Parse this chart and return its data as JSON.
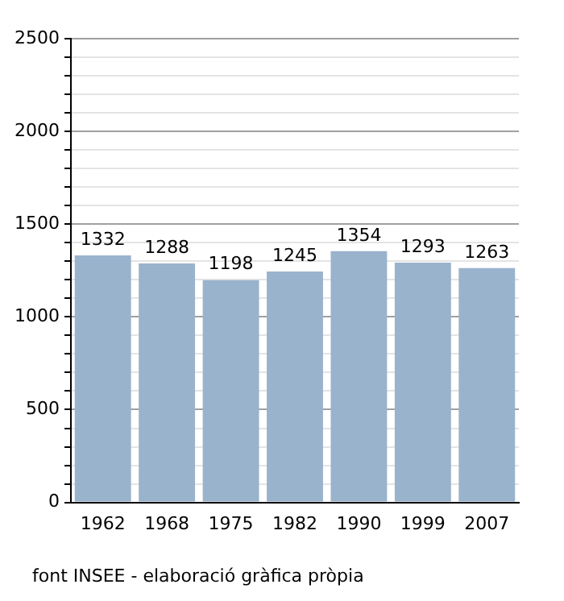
{
  "chart_data": {
    "type": "bar",
    "categories": [
      "1962",
      "1968",
      "1975",
      "1982",
      "1990",
      "1999",
      "2007"
    ],
    "values": [
      1332,
      1288,
      1198,
      1245,
      1354,
      1293,
      1263
    ],
    "color": "#9ab3cc",
    "ylim": [
      0,
      2500
    ],
    "yticks": [
      0,
      {
        "value": 100,
        "label": null
      },
      {
        "value": 200,
        "label": null
      },
      {
        "value": 300,
        "label": null
      },
      {
        "value": 400,
        "label": null
      },
      500,
      {
        "value": 600,
        "label": null
      },
      {
        "value": 700,
        "label": null
      },
      {
        "value": 800,
        "label": null
      },
      {
        "value": 900,
        "label": null
      },
      1000,
      {
        "value": 1100,
        "label": null
      },
      {
        "value": 1200,
        "label": null
      },
      {
        "value": 1300,
        "label": null
      },
      {
        "value": 1400,
        "label": null
      },
      1500,
      {
        "value": 1600,
        "label": null
      },
      {
        "value": 1700,
        "label": null
      },
      {
        "value": 1800,
        "label": null
      },
      {
        "value": 1900,
        "label": null
      },
      2000,
      {
        "value": 2100,
        "label": null
      },
      {
        "value": 2200,
        "label": null
      },
      {
        "value": 2300,
        "label": null
      },
      {
        "value": 2400,
        "label": null
      },
      2500
    ],
    "grid": "y",
    "legend": false,
    "data_labels": true,
    "annotations": [
      "font INSEE - elaboració gràfica pròpia"
    ]
  }
}
